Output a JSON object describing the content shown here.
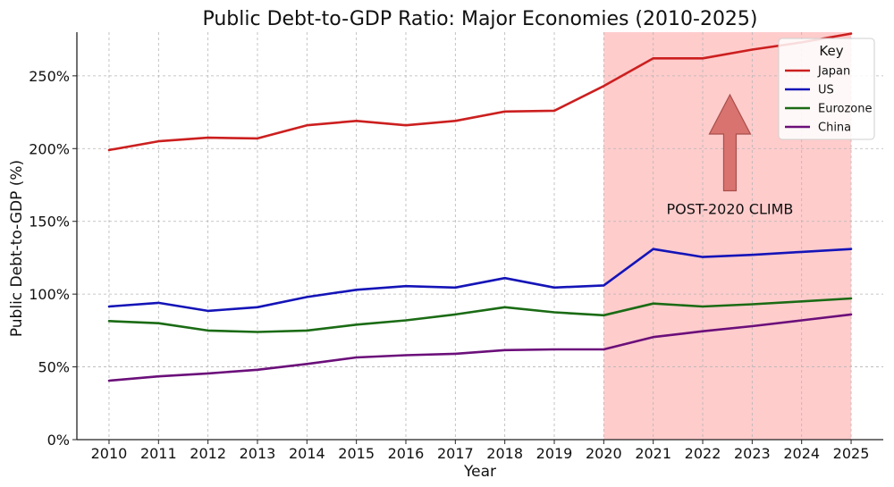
{
  "chart_data": {
    "type": "line",
    "title": "Public Debt-to-GDP Ratio: Major Economies (2010-2025)",
    "xlabel": "Year",
    "ylabel": "Public Debt-to-GDP (%)",
    "x": [
      2010,
      2011,
      2012,
      2013,
      2014,
      2015,
      2016,
      2017,
      2018,
      2019,
      2020,
      2021,
      2022,
      2023,
      2024,
      2025
    ],
    "ylim": [
      0,
      280
    ],
    "yticks": [
      0,
      50,
      100,
      150,
      200,
      250
    ],
    "ytick_labels": [
      "0%",
      "50%",
      "100%",
      "150%",
      "200%",
      "250%"
    ],
    "grid": true,
    "legend": {
      "title": "Key",
      "placement": "top-right"
    },
    "series": [
      {
        "name": "Japan",
        "color": "#cc1f1f",
        "values": [
          199,
          205,
          207.5,
          207,
          216,
          219,
          216,
          219,
          225.5,
          226,
          243,
          262,
          262,
          268,
          273,
          279
        ]
      },
      {
        "name": "US",
        "color": "#1414b8",
        "values": [
          91.5,
          94,
          88.5,
          91,
          98,
          103,
          105.5,
          104.5,
          111,
          104.5,
          106,
          131,
          125.5,
          127,
          129,
          131
        ]
      },
      {
        "name": "Eurozone",
        "color": "#1a6b14",
        "values": [
          81.5,
          80,
          75,
          74,
          75,
          79,
          82,
          86,
          91,
          87.5,
          85.5,
          93.5,
          91.5,
          93,
          95,
          97
        ]
      },
      {
        "name": "China",
        "color": "#6b0f7a",
        "values": [
          40.5,
          43.5,
          45.5,
          48,
          52,
          56.5,
          58,
          59,
          61.5,
          62,
          62,
          70.5,
          74.5,
          78,
          82,
          86
        ]
      }
    ],
    "highlight": {
      "x_start": 2020,
      "x_end": 2025,
      "color": "#ffcccc"
    },
    "annotation": {
      "text": "POST-2020 CLIMB",
      "arrow_color": "#d9736f"
    }
  }
}
